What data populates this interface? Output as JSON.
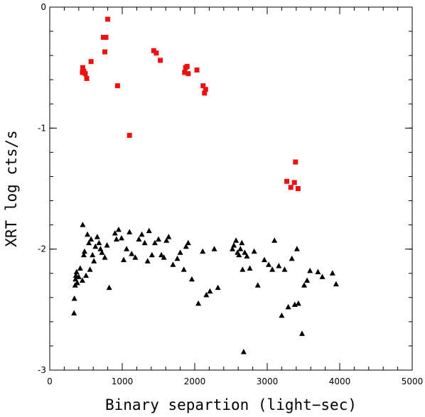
{
  "chart_data": {
    "type": "scatter",
    "title": "",
    "xlabel": "Binary separtion (light−sec)",
    "ylabel": "XRT log cts/s",
    "xlim": [
      0,
      5000
    ],
    "ylim": [
      -3,
      0
    ],
    "xticks": [
      {
        "value": 0,
        "label": "0"
      },
      {
        "value": 1000,
        "label": "1000"
      },
      {
        "value": 2000,
        "label": "2000"
      },
      {
        "value": 3000,
        "label": "3000"
      },
      {
        "value": 4000,
        "label": "4000"
      },
      {
        "value": 5000,
        "label": "5000"
      }
    ],
    "yticks": [
      {
        "value": 0,
        "label": "0"
      },
      {
        "value": -1,
        "label": "-1"
      },
      {
        "value": -2,
        "label": "-2"
      },
      {
        "value": -3,
        "label": "-3"
      }
    ],
    "x_minor_step": 200,
    "y_minor_step": 0.2,
    "grid": false,
    "legend": "none",
    "series": [
      {
        "marker": "square",
        "color": "#ee1111",
        "points": [
          [
            800,
            -0.1
          ],
          [
            740,
            -0.25
          ],
          [
            775,
            -0.25
          ],
          [
            760,
            -0.37
          ],
          [
            455,
            -0.5
          ],
          [
            470,
            -0.53
          ],
          [
            450,
            -0.54
          ],
          [
            490,
            -0.55
          ],
          [
            510,
            -0.59
          ],
          [
            570,
            -0.45
          ],
          [
            935,
            -0.65
          ],
          [
            1100,
            -1.06
          ],
          [
            1435,
            -0.36
          ],
          [
            1470,
            -0.38
          ],
          [
            1525,
            -0.44
          ],
          [
            1875,
            -0.5
          ],
          [
            1895,
            -0.49
          ],
          [
            1860,
            -0.54
          ],
          [
            1910,
            -0.55
          ],
          [
            2030,
            -0.52
          ],
          [
            2115,
            -0.65
          ],
          [
            2150,
            -0.68
          ],
          [
            2135,
            -0.71
          ],
          [
            3390,
            -1.28
          ],
          [
            3270,
            -1.44
          ],
          [
            3375,
            -1.45
          ],
          [
            3325,
            -1.49
          ],
          [
            3425,
            -1.5
          ]
        ]
      },
      {
        "marker": "triangle",
        "color": "#000000",
        "points": [
          [
            335,
            -2.53
          ],
          [
            340,
            -2.41
          ],
          [
            350,
            -2.3
          ],
          [
            355,
            -2.25
          ],
          [
            360,
            -2.22
          ],
          [
            370,
            -2.19
          ],
          [
            380,
            -2.28
          ],
          [
            400,
            -2.23
          ],
          [
            420,
            -2.16
          ],
          [
            450,
            -2.26
          ],
          [
            455,
            -1.8
          ],
          [
            470,
            -2.05
          ],
          [
            480,
            -2.02
          ],
          [
            500,
            -2.22
          ],
          [
            520,
            -1.88
          ],
          [
            540,
            -1.95
          ],
          [
            555,
            -2.17
          ],
          [
            570,
            -1.92
          ],
          [
            590,
            -2.05
          ],
          [
            610,
            -2.1
          ],
          [
            630,
            -1.98
          ],
          [
            655,
            -1.9
          ],
          [
            680,
            -1.95
          ],
          [
            700,
            -2.0
          ],
          [
            720,
            -2.03
          ],
          [
            760,
            -2.07
          ],
          [
            790,
            -1.97
          ],
          [
            820,
            -2.32
          ],
          [
            900,
            -1.87
          ],
          [
            920,
            -1.92
          ],
          [
            950,
            -1.84
          ],
          [
            990,
            -1.91
          ],
          [
            1020,
            -2.09
          ],
          [
            1060,
            -2.0
          ],
          [
            1100,
            -1.86
          ],
          [
            1130,
            -2.04
          ],
          [
            1180,
            -2.07
          ],
          [
            1230,
            -1.92
          ],
          [
            1270,
            -1.88
          ],
          [
            1310,
            -1.95
          ],
          [
            1350,
            -2.1
          ],
          [
            1370,
            -1.85
          ],
          [
            1410,
            -2.05
          ],
          [
            1450,
            -1.95
          ],
          [
            1500,
            -1.92
          ],
          [
            1540,
            -2.05
          ],
          [
            1575,
            -2.07
          ],
          [
            1610,
            -1.93
          ],
          [
            1640,
            -1.9
          ],
          [
            1700,
            -2.13
          ],
          [
            1760,
            -2.08
          ],
          [
            1800,
            -2.03
          ],
          [
            1850,
            -2.17
          ],
          [
            1880,
            -1.98
          ],
          [
            1910,
            -1.95
          ],
          [
            1960,
            -2.25
          ],
          [
            2050,
            -2.45
          ],
          [
            2110,
            -2.02
          ],
          [
            2160,
            -2.38
          ],
          [
            2210,
            -2.35
          ],
          [
            2270,
            -2.0
          ],
          [
            2320,
            -2.32
          ],
          [
            2520,
            -2.0
          ],
          [
            2540,
            -1.97
          ],
          [
            2570,
            -1.93
          ],
          [
            2590,
            -2.03
          ],
          [
            2610,
            -2.05
          ],
          [
            2630,
            -2.0
          ],
          [
            2650,
            -1.95
          ],
          [
            2660,
            -2.17
          ],
          [
            2675,
            -2.85
          ],
          [
            2690,
            -2.03
          ],
          [
            2720,
            -2.06
          ],
          [
            2760,
            -2.16
          ],
          [
            2820,
            -2.02
          ],
          [
            2870,
            -2.3
          ],
          [
            2960,
            -2.09
          ],
          [
            3020,
            -2.13
          ],
          [
            3070,
            -2.17
          ],
          [
            3100,
            -1.93
          ],
          [
            3160,
            -2.14
          ],
          [
            3200,
            -2.55
          ],
          [
            3240,
            -2.17
          ],
          [
            3290,
            -2.48
          ],
          [
            3340,
            -2.08
          ],
          [
            3380,
            -2.46
          ],
          [
            3410,
            -2.0
          ],
          [
            3430,
            -2.45
          ],
          [
            3480,
            -2.7
          ],
          [
            3510,
            -2.3
          ],
          [
            3550,
            -2.26
          ],
          [
            3590,
            -2.18
          ],
          [
            3700,
            -2.19
          ],
          [
            3760,
            -2.23
          ],
          [
            3900,
            -2.2
          ],
          [
            3950,
            -2.29
          ]
        ]
      }
    ]
  }
}
